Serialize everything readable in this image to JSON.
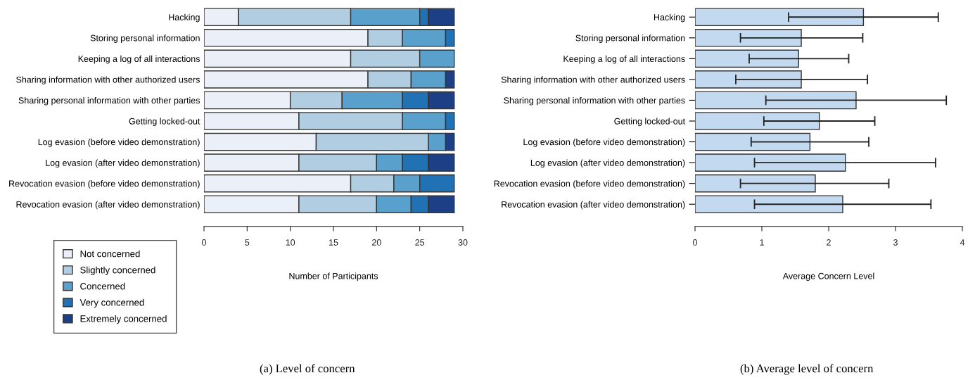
{
  "chart_data": [
    {
      "type": "bar",
      "orientation": "horizontal",
      "stacked": true,
      "xlabel": "Number of Participants",
      "annotations": [
        "(a) Level of concern"
      ],
      "categories": [
        "Hacking",
        "Storing personal information",
        "Keeping a log of all interactions",
        "Sharing information with other authorized users",
        "Sharing personal information with other parties",
        "Getting locked-out",
        "Log evasion (before video demonstration)",
        "Log evasion (after video demonstration)",
        "Revocation evasion (before video demonstration)",
        "Revocation evasion (after video demonstration)"
      ],
      "series": [
        {
          "name": "Not concerned",
          "color": "#eaeff8",
          "values": [
            4,
            19,
            17,
            19,
            10,
            11,
            13,
            11,
            17,
            11
          ]
        },
        {
          "name": "Slightly concerned",
          "color": "#b0cde1",
          "values": [
            13,
            4,
            8,
            5,
            6,
            12,
            13,
            9,
            5,
            9
          ]
        },
        {
          "name": "Concerned",
          "color": "#5aa0cd",
          "values": [
            8,
            5,
            4,
            4,
            7,
            5,
            2,
            3,
            3,
            4
          ]
        },
        {
          "name": "Very concerned",
          "color": "#2171b5",
          "values": [
            1,
            1,
            0,
            0,
            3,
            1,
            0,
            3,
            4,
            2
          ]
        },
        {
          "name": "Extremely concerned",
          "color": "#1c3f85",
          "values": [
            3,
            0,
            0,
            1,
            3,
            0,
            1,
            3,
            0,
            3
          ]
        }
      ],
      "xlim": [
        0,
        30
      ],
      "xticks": [
        0,
        5,
        10,
        15,
        20,
        25,
        30
      ],
      "legend": "bottom left"
    },
    {
      "type": "bar",
      "orientation": "horizontal",
      "xlabel": "Average Concern Level",
      "annotations": [
        "(b) Average level of concern"
      ],
      "categories": [
        "Hacking",
        "Storing personal information",
        "Keeping a log of all interactions",
        "Sharing information with other authorized users",
        "Sharing personal information with other parties",
        "Getting locked-out",
        "Log evasion (before video demonstration)",
        "Log evasion (after video demonstration)",
        "Revocation evasion (before video demonstration)",
        "Revocation evasion (after video demonstration)"
      ],
      "series": [
        {
          "color": "#c3d9ef",
          "values": [
            2.52,
            1.59,
            1.55,
            1.59,
            2.41,
            1.86,
            1.72,
            2.25,
            1.8,
            2.21
          ],
          "errors": [
            [
              1.4,
              3.64
            ],
            [
              0.68,
              2.51
            ],
            [
              0.81,
              2.3
            ],
            [
              0.61,
              2.58
            ],
            [
              1.06,
              3.76
            ],
            [
              1.03,
              2.69
            ],
            [
              0.84,
              2.6
            ],
            [
              0.89,
              3.6
            ],
            [
              0.68,
              2.9
            ],
            [
              0.89,
              3.53
            ]
          ]
        }
      ],
      "xlim": [
        0,
        4
      ],
      "xticks": [
        0,
        1,
        2,
        3,
        4
      ]
    }
  ]
}
